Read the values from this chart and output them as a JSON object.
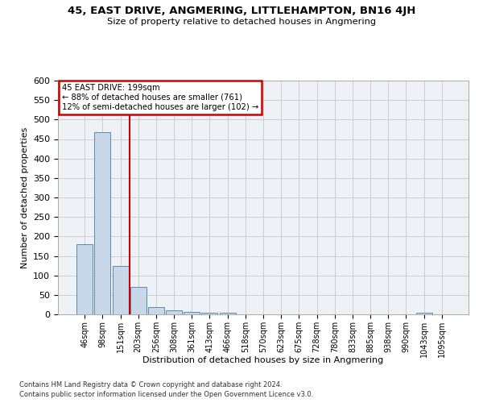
{
  "title": "45, EAST DRIVE, ANGMERING, LITTLEHAMPTON, BN16 4JH",
  "subtitle": "Size of property relative to detached houses in Angmering",
  "xlabel": "Distribution of detached houses by size in Angmering",
  "ylabel": "Number of detached properties",
  "footer_line1": "Contains HM Land Registry data © Crown copyright and database right 2024.",
  "footer_line2": "Contains public sector information licensed under the Open Government Licence v3.0.",
  "bin_labels": [
    "46sqm",
    "98sqm",
    "151sqm",
    "203sqm",
    "256sqm",
    "308sqm",
    "361sqm",
    "413sqm",
    "466sqm",
    "518sqm",
    "570sqm",
    "623sqm",
    "675sqm",
    "728sqm",
    "780sqm",
    "833sqm",
    "885sqm",
    "938sqm",
    "990sqm",
    "1043sqm",
    "1095sqm"
  ],
  "bar_values": [
    180,
    468,
    125,
    70,
    18,
    10,
    6,
    4,
    5,
    0,
    0,
    0,
    0,
    0,
    0,
    0,
    0,
    0,
    0,
    5,
    0
  ],
  "bar_color": "#c8d8e8",
  "bar_edge_color": "#5a8ab0",
  "grid_color": "#cccccc",
  "bg_color": "#eef2f7",
  "annotation_text": "45 EAST DRIVE: 199sqm\n← 88% of detached houses are smaller (761)\n12% of semi-detached houses are larger (102) →",
  "annotation_box_color": "#ffffff",
  "annotation_box_edge": "#cc0000",
  "red_line_color": "#cc0000",
  "ylim": [
    0,
    600
  ],
  "yticks": [
    0,
    50,
    100,
    150,
    200,
    250,
    300,
    350,
    400,
    450,
    500,
    550,
    600
  ]
}
